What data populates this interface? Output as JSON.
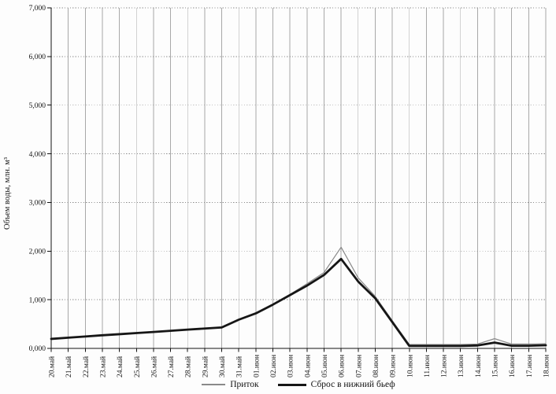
{
  "chart_data": {
    "type": "line",
    "title": "",
    "xlabel": "",
    "ylabel": "Объем воды, млн. м³",
    "ylim": [
      0,
      7000
    ],
    "ytick_step": 1000,
    "ytick_labels": [
      "0,000",
      "1,000",
      "2,000",
      "3,000",
      "4,000",
      "5,000",
      "6,000",
      "7,000"
    ],
    "grid": {
      "vertical": "solid-light",
      "horizontal": "dotted"
    },
    "legend_position": "bottom-center",
    "xtick_rotation_deg": -90,
    "categories": [
      "20.май",
      "21.май",
      "22.май",
      "23.май",
      "24.май",
      "25.май",
      "26.май",
      "27.май",
      "28.май",
      "29.май",
      "30.май",
      "31.май",
      "01.июн",
      "02.июн",
      "03.июн",
      "04.июн",
      "05.июн",
      "06.июн",
      "07.июн",
      "08.июн",
      "09.июн",
      "10.июн",
      "11.июн",
      "12.июн",
      "13.июн",
      "14.июн",
      "15.июн",
      "16.июн",
      "17.июн",
      "18.июн"
    ],
    "series": [
      {
        "name": "Приток",
        "color": "#8a8a8a",
        "stroke_width": 1.2,
        "values": [
          200,
          225,
          250,
          275,
          295,
          320,
          340,
          365,
          390,
          410,
          435,
          595,
          725,
          905,
          1110,
          1330,
          1560,
          2080,
          1450,
          1070,
          570,
          80,
          80,
          80,
          80,
          90,
          200,
          90,
          90,
          95
        ]
      },
      {
        "name": "Сброс в нижний бьеф",
        "color": "#161616",
        "stroke_width": 2.8,
        "values": [
          195,
          220,
          245,
          270,
          292,
          315,
          338,
          362,
          386,
          408,
          430,
          590,
          720,
          900,
          1095,
          1290,
          1510,
          1840,
          1375,
          1030,
          540,
          50,
          50,
          50,
          50,
          60,
          120,
          55,
          55,
          65
        ]
      }
    ]
  },
  "colors": {
    "axis": "#111111",
    "grid_vertical": "#a8a8a8",
    "grid_horizontal": "#8c8c8c",
    "background": "#fdfdfd"
  }
}
